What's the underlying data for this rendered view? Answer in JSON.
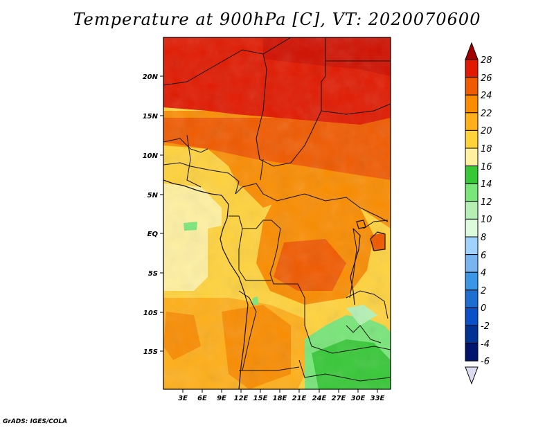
{
  "title": "Temperature at 900hPa [C], VT: 2020070600",
  "credit": "GrADS: IGES/COLA",
  "map": {
    "lat_ticks": [
      "20N",
      "15N",
      "10N",
      "5N",
      "EQ",
      "5S",
      "10S",
      "15S"
    ],
    "lon_ticks": [
      "3E",
      "6E",
      "9E",
      "12E",
      "15E",
      "18E",
      "21E",
      "24E",
      "27E",
      "30E",
      "33E"
    ]
  },
  "colorbar": {
    "labels": [
      "28",
      "26",
      "24",
      "22",
      "20",
      "18",
      "16",
      "14",
      "12",
      "10",
      "8",
      "6",
      "4",
      "2",
      "0",
      "-2",
      "-4",
      "-6"
    ],
    "colors": [
      "#a50000",
      "#e11900",
      "#f05a00",
      "#fa8c00",
      "#ffaf19",
      "#ffd23c",
      "#fff0a0",
      "#37c837",
      "#78e678",
      "#b4f0b4",
      "#dcfadc",
      "#a0d2ff",
      "#78b4f0",
      "#3c96e6",
      "#1e6ed2",
      "#0a50c8",
      "#003296",
      "#00146e",
      "#dcdcf0"
    ]
  }
}
